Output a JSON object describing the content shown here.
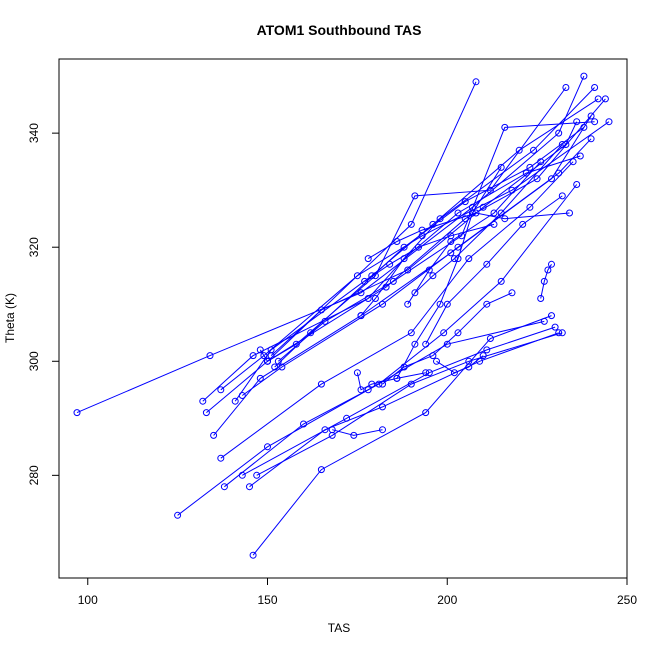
{
  "chart_data": {
    "type": "line",
    "title": "ATOM1 Southbound TAS",
    "xlabel": "TAS",
    "ylabel": "Theta (K)",
    "xlim": [
      92,
      250
    ],
    "ylim": [
      262,
      353
    ],
    "xticks": [
      100,
      150,
      200,
      250
    ],
    "yticks": [
      280,
      300,
      320,
      340
    ],
    "grid": false,
    "legend": "none",
    "color": "#0000ff",
    "segments": [
      {
        "x": [
          97,
          134,
          176,
          207,
          231,
          238
        ],
        "y": [
          291,
          301,
          312,
          327,
          340,
          350
        ]
      },
      {
        "x": [
          132,
          146,
          178,
          198,
          224,
          241
        ],
        "y": [
          293,
          301,
          311,
          325,
          337,
          348
        ]
      },
      {
        "x": [
          133,
          150,
          183,
          205,
          225,
          244
        ],
        "y": [
          291,
          300,
          313,
          325,
          332,
          346
        ]
      },
      {
        "x": [
          135,
          148,
          176,
          201,
          229,
          240
        ],
        "y": [
          287,
          297,
          308,
          319,
          332,
          343
        ]
      },
      {
        "x": [
          137,
          149,
          175,
          193,
          218,
          245
        ],
        "y": [
          295,
          301,
          315,
          322,
          330,
          342
        ]
      },
      {
        "x": [
          141,
          151,
          179,
          196,
          220,
          242
        ],
        "y": [
          293,
          302,
          315,
          324,
          337,
          346
        ]
      },
      {
        "x": [
          143,
          154,
          182,
          203,
          231,
          240
        ],
        "y": [
          294,
          299,
          310,
          320,
          333,
          339
        ]
      },
      {
        "x": [
          148,
          150,
          190,
          208
        ],
        "y": [
          302,
          300,
          324,
          349
        ]
      },
      {
        "x": [
          150,
          158,
          180,
          191,
          212,
          233
        ],
        "y": [
          300,
          303,
          315,
          329,
          330,
          348
        ]
      },
      {
        "x": [
          151,
          165,
          189,
          210,
          233,
          236
        ],
        "y": [
          301,
          309,
          316,
          327,
          338,
          342
        ]
      },
      {
        "x": [
          153,
          166,
          185,
          204,
          216,
          241
        ],
        "y": [
          300,
          307,
          314,
          322,
          341,
          342
        ]
      },
      {
        "x": [
          152,
          162,
          188,
          205,
          223,
          238
        ],
        "y": [
          299,
          305,
          320,
          328,
          334,
          341
        ]
      },
      {
        "x": [
          137,
          165,
          190,
          206,
          223,
          235
        ],
        "y": [
          283,
          296,
          305,
          318,
          327,
          335
        ]
      },
      {
        "x": [
          138,
          160,
          181,
          199,
          215,
          236
        ],
        "y": [
          278,
          289,
          296,
          305,
          314,
          331
        ]
      },
      {
        "x": [
          125,
          150,
          178,
          200,
          227
        ],
        "y": [
          273,
          285,
          295,
          303,
          307
        ]
      },
      {
        "x": [
          143,
          172,
          195,
          211,
          230
        ],
        "y": [
          280,
          290,
          298,
          302,
          306
        ]
      },
      {
        "x": [
          145,
          166,
          182,
          209,
          231
        ],
        "y": [
          278,
          288,
          292,
          300,
          305
        ]
      },
      {
        "x": [
          147,
          168,
          190,
          206,
          232
        ],
        "y": [
          280,
          287,
          296,
          300,
          305
        ]
      },
      {
        "x": [
          146,
          165,
          194,
          212,
          229
        ],
        "y": [
          266,
          281,
          291,
          304,
          308
        ]
      },
      {
        "x": [
          168,
          174,
          182
        ],
        "y": [
          288,
          287,
          288
        ]
      },
      {
        "x": [
          175,
          176,
          179,
          186,
          194
        ],
        "y": [
          298,
          295,
          296,
          297,
          298
        ]
      },
      {
        "x": [
          182,
          188,
          196,
          203,
          211,
          218
        ],
        "y": [
          296,
          299,
          301,
          305,
          310,
          312
        ]
      },
      {
        "x": [
          186,
          191,
          198,
          203,
          207,
          215
        ],
        "y": [
          297,
          303,
          310,
          318,
          326,
          334
        ]
      },
      {
        "x": [
          189,
          195,
          201,
          213,
          226
        ],
        "y": [
          310,
          316,
          321,
          326,
          335
        ]
      },
      {
        "x": [
          191,
          196,
          202,
          215,
          232
        ],
        "y": [
          312,
          315,
          318,
          326,
          338
        ]
      },
      {
        "x": [
          177,
          184,
          192,
          201,
          213
        ],
        "y": [
          314,
          317,
          320,
          322,
          324
        ]
      },
      {
        "x": [
          178,
          186,
          193,
          208,
          216,
          234
        ],
        "y": [
          318,
          321,
          323,
          326,
          325,
          326
        ]
      },
      {
        "x": [
          176,
          180,
          188,
          203,
          222,
          237
        ],
        "y": [
          308,
          311,
          318,
          326,
          333,
          336
        ]
      },
      {
        "x": [
          226,
          227,
          228,
          229
        ],
        "y": [
          311,
          314,
          316,
          317
        ]
      },
      {
        "x": [
          194,
          200,
          211,
          221,
          232
        ],
        "y": [
          303,
          310,
          317,
          324,
          329
        ]
      },
      {
        "x": [
          197,
          202,
          206,
          210
        ],
        "y": [
          300,
          298,
          299,
          301
        ]
      }
    ]
  }
}
